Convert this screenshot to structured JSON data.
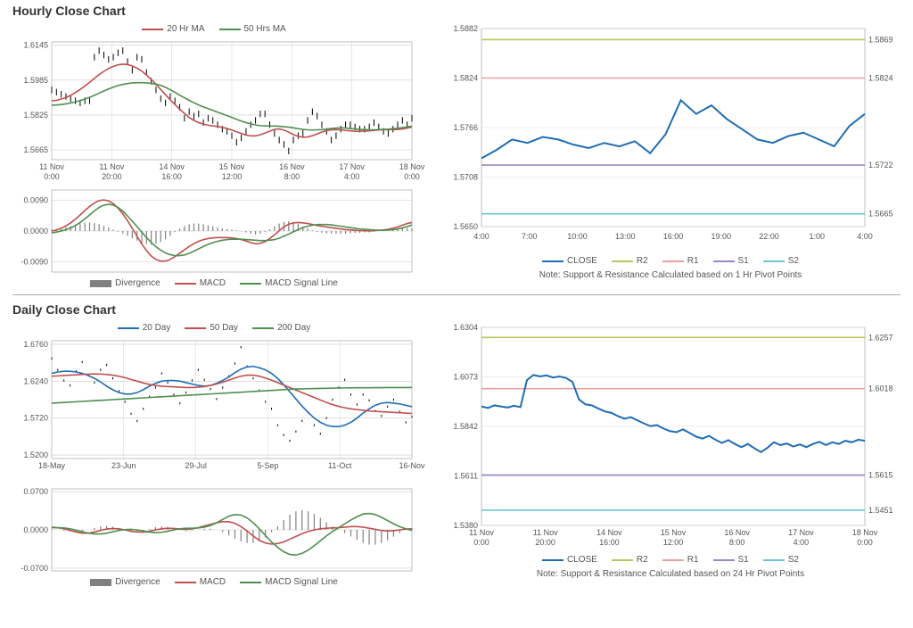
{
  "hourly": {
    "title": "Hourly Close Chart",
    "price": {
      "type": "line",
      "legend": [
        {
          "label": "20 Hr MA",
          "color": "#c0504d"
        },
        {
          "label": "50 Hrs MA",
          "color": "#4f8f4f"
        }
      ],
      "y_ticks": [
        1.5665,
        1.5825,
        1.5985,
        1.6145
      ],
      "x_ticks": [
        "11 Nov 0:00",
        "11 Nov 20:00",
        "14 Nov 16:00",
        "15 Nov 12:00",
        "16 Nov 8:00",
        "17 Nov 4:00",
        "18 Nov 0:00"
      ],
      "ylim": [
        1.562,
        1.616
      ],
      "grid_color": "#cccccc",
      "ma20_color": "#c0504d",
      "ma50_color": "#4f8f4f",
      "price_color": "#000000",
      "price": [
        1.594,
        1.593,
        1.592,
        1.591,
        1.59,
        1.589,
        1.588,
        1.589,
        1.589,
        1.609,
        1.612,
        1.61,
        1.608,
        1.609,
        1.611,
        1.612,
        1.607,
        1.603,
        1.609,
        1.608,
        1.602,
        1.598,
        1.594,
        1.59,
        1.588,
        1.591,
        1.589,
        1.586,
        1.581,
        1.584,
        1.582,
        1.583,
        1.579,
        1.581,
        1.58,
        1.578,
        1.576,
        1.575,
        1.573,
        1.57,
        1.572,
        1.575,
        1.578,
        1.58,
        1.583,
        1.583,
        1.578,
        1.574,
        1.571,
        1.569,
        1.566,
        1.571,
        1.573,
        1.574,
        1.58,
        1.584,
        1.582,
        1.578,
        1.575,
        1.571,
        1.573,
        1.576,
        1.578,
        1.578,
        1.577,
        1.576,
        1.576,
        1.577,
        1.579,
        1.577,
        1.575,
        1.574,
        1.576,
        1.578,
        1.58,
        1.578,
        1.581
      ],
      "ma20": [
        1.589,
        1.5892,
        1.5898,
        1.5905,
        1.5915,
        1.5928,
        1.5942,
        1.5958,
        1.5975,
        1.5993,
        1.601,
        1.6025,
        1.6038,
        1.6048,
        1.6055,
        1.6058,
        1.6056,
        1.605,
        1.604,
        1.6026,
        1.6008,
        1.5988,
        1.5966,
        1.5942,
        1.5918,
        1.5895,
        1.5873,
        1.5852,
        1.5832,
        1.5814,
        1.58,
        1.579,
        1.5783,
        1.5778,
        1.5775,
        1.5772,
        1.5768,
        1.5763,
        1.5756,
        1.5748,
        1.574,
        1.5733,
        1.5729,
        1.5729,
        1.5734,
        1.5742,
        1.5751,
        1.5759,
        1.5761,
        1.5756,
        1.5746,
        1.5735,
        1.5727,
        1.5723,
        1.5724,
        1.573,
        1.5738,
        1.5747,
        1.5753,
        1.5757,
        1.5758,
        1.5757,
        1.5754,
        1.5752,
        1.575,
        1.575,
        1.5751,
        1.5752,
        1.5754,
        1.5756,
        1.5757,
        1.5758,
        1.5758,
        1.5759,
        1.5761,
        1.5765,
        1.577
      ],
      "ma50": [
        1.587,
        1.5871,
        1.5873,
        1.5876,
        1.588,
        1.5885,
        1.5891,
        1.5898,
        1.5906,
        1.5915,
        1.5925,
        1.5935,
        1.5944,
        1.5953,
        1.596,
        1.5965,
        1.5969,
        1.5972,
        1.5973,
        1.5973,
        1.5972,
        1.597,
        1.5966,
        1.5961,
        1.5952,
        1.5941,
        1.5929,
        1.5916,
        1.5904,
        1.5892,
        1.5881,
        1.5871,
        1.5862,
        1.5854,
        1.5846,
        1.5838,
        1.583,
        1.5822,
        1.5814,
        1.5805,
        1.5797,
        1.579,
        1.5784,
        1.5779,
        1.5776,
        1.5775,
        1.5774,
        1.5774,
        1.5773,
        1.5771,
        1.5769,
        1.5766,
        1.5762,
        1.5759,
        1.5757,
        1.5756,
        1.5757,
        1.5758,
        1.576,
        1.5763,
        1.5765,
        1.5766,
        1.5765,
        1.5763,
        1.5761,
        1.5759,
        1.5758,
        1.5757,
        1.5757,
        1.5758,
        1.5759,
        1.576,
        1.5762,
        1.5764,
        1.5767,
        1.577,
        1.5774
      ]
    },
    "macd": {
      "type": "macd",
      "legend": [
        {
          "label": "Divergence",
          "color": "#808080",
          "shape": "bar"
        },
        {
          "label": "MACD",
          "color": "#c0504d"
        },
        {
          "label": "MACD Signal Line",
          "color": "#4f8f4f"
        }
      ],
      "y_ticks": [
        -0.009,
        0.0,
        0.009
      ],
      "ylim": [
        -0.012,
        0.012
      ],
      "div_color": "#808080",
      "macd_color": "#c0504d",
      "signal_color": "#4f8f4f",
      "macd_vals": [
        0.0,
        0.0003,
        0.0008,
        0.0015,
        0.0024,
        0.0035,
        0.0047,
        0.006,
        0.0072,
        0.0082,
        0.0089,
        0.0091,
        0.0088,
        0.008,
        0.0067,
        0.005,
        0.003,
        0.0008,
        -0.0015,
        -0.0038,
        -0.0057,
        -0.0073,
        -0.0083,
        -0.0088,
        -0.0088,
        -0.0083,
        -0.0075,
        -0.0065,
        -0.0055,
        -0.0045,
        -0.0037,
        -0.003,
        -0.0025,
        -0.0022,
        -0.002,
        -0.0019,
        -0.0019,
        -0.0019,
        -0.002,
        -0.0022,
        -0.0025,
        -0.0029,
        -0.0034,
        -0.0037,
        -0.0036,
        -0.0031,
        -0.0022,
        -0.0011,
        0.0001,
        0.0012,
        0.002,
        0.0024,
        0.0025,
        0.0024,
        0.0022,
        0.0019,
        0.0016,
        0.0014,
        0.0012,
        0.001,
        0.0008,
        0.0006,
        0.0004,
        0.0003,
        0.0002,
        0.0001,
        0.0001,
        0.0,
        0.0001,
        0.0002,
        0.0003,
        0.0005,
        0.0008,
        0.0012,
        0.0017,
        0.0022,
        0.0025
      ],
      "signal_vals": [
        -0.0005,
        -0.0003,
        0.0,
        0.0004,
        0.0009,
        0.0016,
        0.0025,
        0.0036,
        0.0047,
        0.0059,
        0.0069,
        0.0076,
        0.0078,
        0.0076,
        0.0069,
        0.0058,
        0.0044,
        0.0029,
        0.0013,
        -0.0003,
        -0.0019,
        -0.0033,
        -0.0046,
        -0.0056,
        -0.0064,
        -0.0069,
        -0.0072,
        -0.0072,
        -0.007,
        -0.0065,
        -0.0059,
        -0.0052,
        -0.0045,
        -0.0039,
        -0.0034,
        -0.003,
        -0.0027,
        -0.0025,
        -0.0024,
        -0.0024,
        -0.0024,
        -0.0025,
        -0.0026,
        -0.0027,
        -0.0028,
        -0.0028,
        -0.0027,
        -0.0025,
        -0.0021,
        -0.0015,
        -0.0009,
        -0.0002,
        0.0004,
        0.001,
        0.0014,
        0.0017,
        0.0019,
        0.0019,
        0.0019,
        0.0018,
        0.0016,
        0.0014,
        0.0012,
        0.001,
        0.0008,
        0.0006,
        0.0005,
        0.0004,
        0.0003,
        0.0002,
        0.0002,
        0.0003,
        0.0004,
        0.0006,
        0.0009,
        0.0013,
        0.0018
      ]
    },
    "sr": {
      "type": "line",
      "legend": [
        {
          "label": "CLOSE",
          "color": "#1f6db4"
        },
        {
          "label": "R2",
          "color": "#b2c95e"
        },
        {
          "label": "R1",
          "color": "#e8a0a0"
        },
        {
          "label": "S1",
          "color": "#9b86c9"
        },
        {
          "label": "S2",
          "color": "#6ec5d6"
        }
      ],
      "y_ticks": [
        1.565,
        1.5708,
        1.5766,
        1.5824,
        1.5882
      ],
      "ylim": [
        1.565,
        1.5882
      ],
      "x_ticks": [
        "4:00",
        "7:00",
        "10:00",
        "13:00",
        "16:00",
        "19:00",
        "22:00",
        "1:00",
        "4:00"
      ],
      "close_color": "#1f6db4",
      "r2": 1.5869,
      "r2_color": "#b2c95e",
      "r1": 1.5824,
      "r1_color": "#e8a0a0",
      "s1": 1.5722,
      "s1_color": "#9b86c9",
      "s2": 1.5665,
      "s2_color": "#6ec5d6",
      "close": [
        1.573,
        1.574,
        1.5752,
        1.5748,
        1.5755,
        1.5752,
        1.5746,
        1.5742,
        1.5748,
        1.5744,
        1.575,
        1.5736,
        1.5758,
        1.5798,
        1.5782,
        1.5792,
        1.5776,
        1.5764,
        1.5752,
        1.5748,
        1.5756,
        1.576,
        1.5752,
        1.5744,
        1.5768,
        1.5782
      ],
      "note": "Note: Support & Resistance Calculated based on 1 Hr Pivot Points"
    }
  },
  "daily": {
    "title": "Daily Close Chart",
    "price": {
      "type": "line",
      "legend": [
        {
          "label": "20 Day",
          "color": "#1f6db4"
        },
        {
          "label": "50 Day",
          "color": "#c0504d"
        },
        {
          "label": "200 Day",
          "color": "#4f8f4f"
        }
      ],
      "y_ticks": [
        1.52,
        1.572,
        1.624,
        1.676
      ],
      "x_ticks": [
        "18-May",
        "23-Jun",
        "29-Jul",
        "5-Sep",
        "11-Oct",
        "16-Nov"
      ],
      "ylim": [
        1.515,
        1.681
      ],
      "grid_color": "#cccccc",
      "price_color": "#000000",
      "ma20_color": "#1f6db4",
      "ma50_color": "#c0504d",
      "ma200_color": "#4f8f4f",
      "price": [
        1.656,
        1.64,
        1.625,
        1.618,
        1.638,
        1.651,
        1.633,
        1.622,
        1.64,
        1.647,
        1.628,
        1.61,
        1.595,
        1.578,
        1.568,
        1.585,
        1.602,
        1.615,
        1.635,
        1.622,
        1.605,
        1.593,
        1.608,
        1.625,
        1.64,
        1.626,
        1.613,
        1.599,
        1.615,
        1.631,
        1.649,
        1.672,
        1.645,
        1.628,
        1.611,
        1.595,
        1.585,
        1.562,
        1.548,
        1.54,
        1.553,
        1.568,
        1.58,
        1.562,
        1.55,
        1.572,
        1.598,
        1.615,
        1.626,
        1.605,
        1.591,
        1.605,
        1.597,
        1.582,
        1.575,
        1.588,
        1.598,
        1.581,
        1.566,
        1.574
      ],
      "ma20": [
        1.635,
        1.637,
        1.638,
        1.638,
        1.637,
        1.635,
        1.632,
        1.628,
        1.623,
        1.617,
        1.612,
        1.608,
        1.606,
        1.606,
        1.608,
        1.612,
        1.617,
        1.621,
        1.624,
        1.625,
        1.625,
        1.624,
        1.622,
        1.62,
        1.618,
        1.617,
        1.618,
        1.621,
        1.625,
        1.63,
        1.636,
        1.641,
        1.644,
        1.645,
        1.643,
        1.64,
        1.635,
        1.628,
        1.619,
        1.609,
        1.599,
        1.589,
        1.58,
        1.572,
        1.566,
        1.562,
        1.56,
        1.56,
        1.562,
        1.566,
        1.572,
        1.579,
        1.585,
        1.59,
        1.593,
        1.594,
        1.593,
        1.592,
        1.59,
        1.588
      ],
      "ma50": [
        1.631,
        1.6315,
        1.632,
        1.6325,
        1.633,
        1.6335,
        1.634,
        1.6342,
        1.634,
        1.6335,
        1.6325,
        1.631,
        1.629,
        1.6265,
        1.624,
        1.6215,
        1.6195,
        1.618,
        1.617,
        1.6165,
        1.616,
        1.6155,
        1.615,
        1.615,
        1.6155,
        1.6165,
        1.618,
        1.62,
        1.6225,
        1.6255,
        1.6285,
        1.631,
        1.6325,
        1.6325,
        1.631,
        1.6285,
        1.6255,
        1.622,
        1.6185,
        1.615,
        1.6115,
        1.608,
        1.6045,
        1.601,
        1.5975,
        1.594,
        1.591,
        1.5885,
        1.5865,
        1.585,
        1.584,
        1.583,
        1.582,
        1.5815,
        1.581,
        1.5805,
        1.58,
        1.5795,
        1.579,
        1.5785
      ],
      "ma200": [
        1.593,
        1.5935,
        1.594,
        1.5945,
        1.595,
        1.5955,
        1.596,
        1.5965,
        1.597,
        1.5975,
        1.598,
        1.5985,
        1.599,
        1.5995,
        1.6,
        1.6005,
        1.601,
        1.6015,
        1.602,
        1.6025,
        1.603,
        1.6035,
        1.604,
        1.6045,
        1.605,
        1.6055,
        1.606,
        1.6065,
        1.607,
        1.6075,
        1.608,
        1.6085,
        1.609,
        1.6095,
        1.61,
        1.6105,
        1.611,
        1.6115,
        1.612,
        1.6125,
        1.613,
        1.6132,
        1.6134,
        1.6136,
        1.6138,
        1.614,
        1.6142,
        1.6144,
        1.6145,
        1.6146,
        1.6147,
        1.6148,
        1.6148,
        1.6149,
        1.6149,
        1.615,
        1.615,
        1.615,
        1.615,
        1.615
      ]
    },
    "macd": {
      "type": "macd",
      "legend": [
        {
          "label": "Divergence",
          "color": "#808080",
          "shape": "bar"
        },
        {
          "label": "MACD",
          "color": "#c0504d"
        },
        {
          "label": "MACD Signal Line",
          "color": "#4f8f4f"
        }
      ],
      "y_ticks": [
        -0.07,
        0.0,
        0.07
      ],
      "ylim": [
        -0.075,
        0.075
      ],
      "div_color": "#808080",
      "macd_color": "#c0504d",
      "signal_color": "#4f8f4f",
      "macd_vals": [
        0.005,
        0.004,
        0.002,
        -0.001,
        -0.004,
        -0.006,
        -0.006,
        -0.004,
        -0.001,
        0.0015,
        0.0025,
        0.002,
        0.0,
        -0.0025,
        -0.004,
        -0.004,
        -0.0025,
        0.0,
        0.002,
        0.003,
        0.0025,
        0.0015,
        0.001,
        0.002,
        0.004,
        0.007,
        0.01,
        0.013,
        0.015,
        0.015,
        0.012,
        0.006,
        -0.002,
        -0.011,
        -0.019,
        -0.024,
        -0.026,
        -0.025,
        -0.022,
        -0.017,
        -0.012,
        -0.007,
        -0.003,
        0.0,
        0.002,
        0.003,
        0.0035,
        0.004,
        0.005,
        0.006,
        0.006,
        0.005,
        0.003,
        0.001,
        -0.001,
        -0.002,
        -0.0015,
        0.0,
        0.0015,
        0.002
      ],
      "signal_vals": [
        0.004,
        0.004,
        0.0035,
        0.002,
        -0.0005,
        -0.0035,
        -0.006,
        -0.0075,
        -0.0075,
        -0.006,
        -0.0035,
        -0.001,
        0.0005,
        0.001,
        0.0,
        -0.002,
        -0.004,
        -0.005,
        -0.0045,
        -0.0025,
        0.0,
        0.002,
        0.003,
        0.003,
        0.0035,
        0.005,
        0.008,
        0.013,
        0.019,
        0.025,
        0.028,
        0.027,
        0.022,
        0.013,
        0.002,
        -0.01,
        -0.022,
        -0.032,
        -0.04,
        -0.045,
        -0.046,
        -0.043,
        -0.037,
        -0.029,
        -0.02,
        -0.011,
        -0.003,
        0.004,
        0.011,
        0.018,
        0.024,
        0.029,
        0.03,
        0.028,
        0.023,
        0.017,
        0.011,
        0.006,
        0.002,
        -0.001
      ]
    },
    "sr": {
      "type": "line",
      "legend": [
        {
          "label": "CLOSE",
          "color": "#1f6db4"
        },
        {
          "label": "R2",
          "color": "#b2c95e"
        },
        {
          "label": "R1",
          "color": "#e8a0a0"
        },
        {
          "label": "S1",
          "color": "#9b86c9"
        },
        {
          "label": "S2",
          "color": "#6ec5d6"
        }
      ],
      "y_ticks": [
        1.538,
        1.5611,
        1.5842,
        1.6073,
        1.6304
      ],
      "ylim": [
        1.538,
        1.6304
      ],
      "x_ticks": [
        "11 Nov 0:00",
        "11 Nov 20:00",
        "14 Nov 16:00",
        "15 Nov 12:00",
        "16 Nov 8:00",
        "17 Nov 4:00",
        "18 Nov 0:00"
      ],
      "close_color": "#1f6db4",
      "r2": 1.6257,
      "r2_color": "#b2c95e",
      "r1": 1.6018,
      "r1_color": "#e8a0a0",
      "s1": 1.5615,
      "s1_color": "#9b86c9",
      "s2": 1.5451,
      "s2_color": "#6ec5d6",
      "close": [
        1.5935,
        1.5928,
        1.594,
        1.5935,
        1.593,
        1.5938,
        1.5932,
        1.6058,
        1.6082,
        1.6075,
        1.608,
        1.607,
        1.6075,
        1.6068,
        1.605,
        1.5968,
        1.5945,
        1.594,
        1.5925,
        1.5912,
        1.5905,
        1.589,
        1.5878,
        1.5885,
        1.587,
        1.5856,
        1.5843,
        1.5848,
        1.5832,
        1.582,
        1.5815,
        1.5828,
        1.5812,
        1.5795,
        1.5785,
        1.5798,
        1.578,
        1.5765,
        1.5778,
        1.576,
        1.5745,
        1.576,
        1.574,
        1.5722,
        1.5742,
        1.5768,
        1.5755,
        1.5762,
        1.5748,
        1.5758,
        1.5745,
        1.576,
        1.577,
        1.5755,
        1.5768,
        1.576,
        1.5775,
        1.5768,
        1.578,
        1.5775
      ],
      "note": "Note: Support & Resistance Calculated based on 24 Hr Pivot Points"
    }
  }
}
